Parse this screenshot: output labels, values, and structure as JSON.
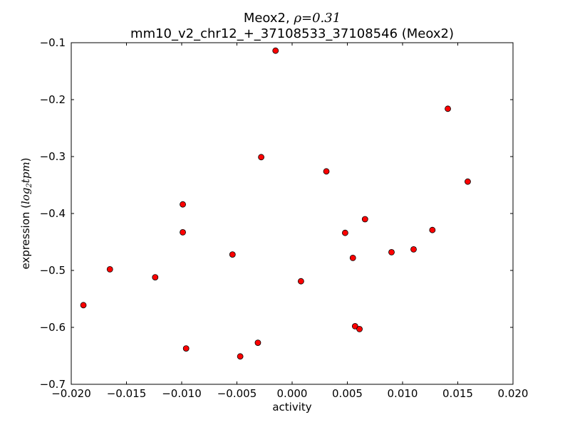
{
  "chart_data": {
    "type": "scatter",
    "title": {
      "line1_text": "Meox2, ",
      "line1_math": "ρ=0.31",
      "line2": "mm10_v2_chr12_+_37108533_37108546 (Meox2)"
    },
    "xlabel": "activity",
    "ylabel": {
      "text": "expression (",
      "math": "log",
      "math_sub": "2",
      "math_rest": "tpm",
      "close": ")"
    },
    "xlim": [
      -0.02,
      0.02
    ],
    "ylim": [
      -0.7,
      -0.1
    ],
    "xticks": [
      -0.02,
      -0.015,
      -0.01,
      -0.005,
      0.0,
      0.005,
      0.01,
      0.015,
      0.02
    ],
    "xtick_labels": [
      "−0.020",
      "−0.015",
      "−0.010",
      "−0.005",
      "0.000",
      "0.005",
      "0.010",
      "0.015",
      "0.020"
    ],
    "yticks": [
      -0.1,
      -0.2,
      -0.3,
      -0.4,
      -0.5,
      -0.6,
      -0.7
    ],
    "ytick_labels": [
      "−0.1",
      "−0.2",
      "−0.3",
      "−0.4",
      "−0.5",
      "−0.6",
      "−0.7"
    ],
    "marker_color": "#ff0000",
    "marker_edge": "#000000",
    "points": [
      {
        "x": -0.0015,
        "y": -0.114
      },
      {
        "x": 0.0141,
        "y": -0.216
      },
      {
        "x": -0.0028,
        "y": -0.301
      },
      {
        "x": 0.0031,
        "y": -0.326
      },
      {
        "x": 0.0159,
        "y": -0.344
      },
      {
        "x": -0.0099,
        "y": -0.384
      },
      {
        "x": 0.0066,
        "y": -0.41
      },
      {
        "x": 0.0048,
        "y": -0.434
      },
      {
        "x": -0.0099,
        "y": -0.433
      },
      {
        "x": 0.0127,
        "y": -0.429
      },
      {
        "x": 0.011,
        "y": -0.463
      },
      {
        "x": 0.009,
        "y": -0.468
      },
      {
        "x": 0.0055,
        "y": -0.478
      },
      {
        "x": -0.0054,
        "y": -0.472
      },
      {
        "x": -0.0165,
        "y": -0.498
      },
      {
        "x": -0.0124,
        "y": -0.512
      },
      {
        "x": 0.0008,
        "y": -0.519
      },
      {
        "x": -0.0189,
        "y": -0.561
      },
      {
        "x": 0.0057,
        "y": -0.598
      },
      {
        "x": 0.0061,
        "y": -0.603
      },
      {
        "x": -0.0031,
        "y": -0.627
      },
      {
        "x": -0.0096,
        "y": -0.637
      },
      {
        "x": -0.0047,
        "y": -0.651
      }
    ]
  }
}
